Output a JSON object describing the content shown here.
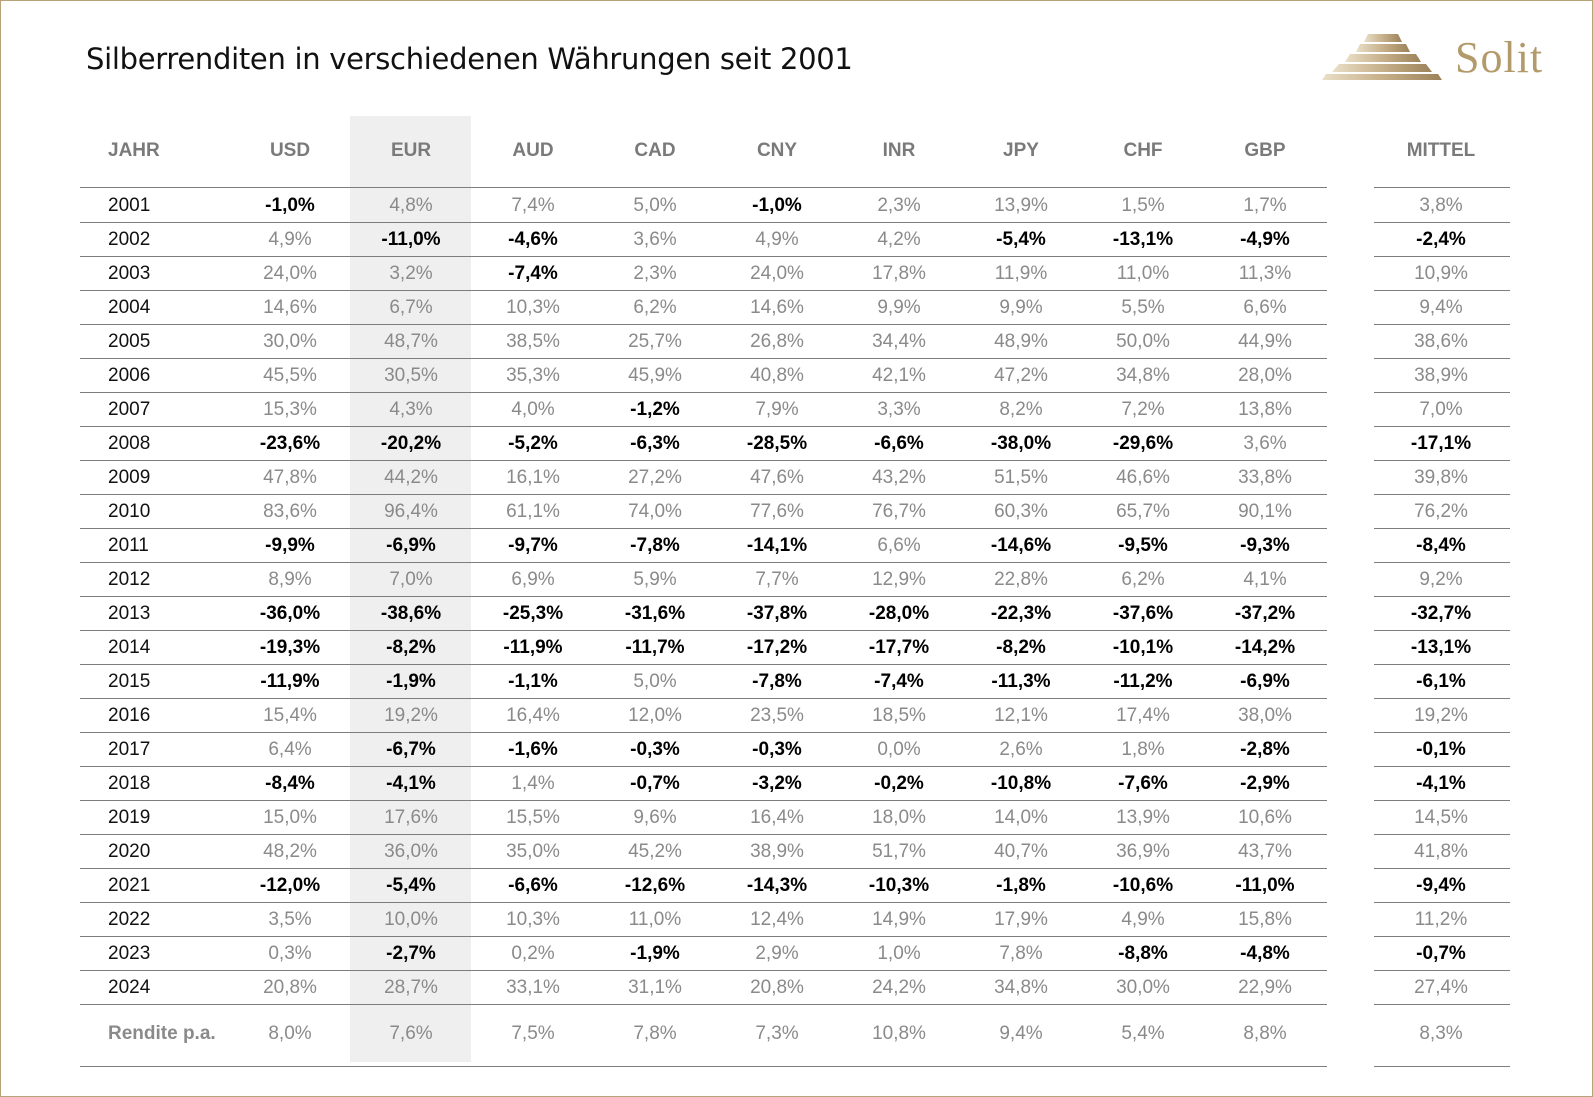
{
  "title": "Silberrenditen in verschiedenen Währungen seit 2001",
  "brand": "Solit",
  "logo_icon": "stepped-pyramid-icon",
  "colors": {
    "accent": "#b39a6b",
    "negative": "#000000",
    "positive": "#8a8a8a",
    "highlight_band": "#efefef"
  },
  "chart_data": {
    "type": "table",
    "title": "Silberrenditen in verschiedenen Währungen seit 2001",
    "columns": [
      "JAHR",
      "USD",
      "EUR",
      "AUD",
      "CAD",
      "CNY",
      "INR",
      "JPY",
      "CHF",
      "GBP",
      "MITTEL"
    ],
    "highlighted_column": "EUR",
    "rows": [
      [
        "2001",
        "-1,0%",
        "4,8%",
        "7,4%",
        "5,0%",
        "-1,0%",
        "2,3%",
        "13,9%",
        "1,5%",
        "1,7%",
        "3,8%"
      ],
      [
        "2002",
        "4,9%",
        "-11,0%",
        "-4,6%",
        "3,6%",
        "4,9%",
        "4,2%",
        "-5,4%",
        "-13,1%",
        "-4,9%",
        "-2,4%"
      ],
      [
        "2003",
        "24,0%",
        "3,2%",
        "-7,4%",
        "2,3%",
        "24,0%",
        "17,8%",
        "11,9%",
        "11,0%",
        "11,3%",
        "10,9%"
      ],
      [
        "2004",
        "14,6%",
        "6,7%",
        "10,3%",
        "6,2%",
        "14,6%",
        "9,9%",
        "9,9%",
        "5,5%",
        "6,6%",
        "9,4%"
      ],
      [
        "2005",
        "30,0%",
        "48,7%",
        "38,5%",
        "25,7%",
        "26,8%",
        "34,4%",
        "48,9%",
        "50,0%",
        "44,9%",
        "38,6%"
      ],
      [
        "2006",
        "45,5%",
        "30,5%",
        "35,3%",
        "45,9%",
        "40,8%",
        "42,1%",
        "47,2%",
        "34,8%",
        "28,0%",
        "38,9%"
      ],
      [
        "2007",
        "15,3%",
        "4,3%",
        "4,0%",
        "-1,2%",
        "7,9%",
        "3,3%",
        "8,2%",
        "7,2%",
        "13,8%",
        "7,0%"
      ],
      [
        "2008",
        "-23,6%",
        "-20,2%",
        "-5,2%",
        "-6,3%",
        "-28,5%",
        "-6,6%",
        "-38,0%",
        "-29,6%",
        "3,6%",
        "-17,1%"
      ],
      [
        "2009",
        "47,8%",
        "44,2%",
        "16,1%",
        "27,2%",
        "47,6%",
        "43,2%",
        "51,5%",
        "46,6%",
        "33,8%",
        "39,8%"
      ],
      [
        "2010",
        "83,6%",
        "96,4%",
        "61,1%",
        "74,0%",
        "77,6%",
        "76,7%",
        "60,3%",
        "65,7%",
        "90,1%",
        "76,2%"
      ],
      [
        "2011",
        "-9,9%",
        "-6,9%",
        "-9,7%",
        "-7,8%",
        "-14,1%",
        "6,6%",
        "-14,6%",
        "-9,5%",
        "-9,3%",
        "-8,4%"
      ],
      [
        "2012",
        "8,9%",
        "7,0%",
        "6,9%",
        "5,9%",
        "7,7%",
        "12,9%",
        "22,8%",
        "6,2%",
        "4,1%",
        "9,2%"
      ],
      [
        "2013",
        "-36,0%",
        "-38,6%",
        "-25,3%",
        "-31,6%",
        "-37,8%",
        "-28,0%",
        "-22,3%",
        "-37,6%",
        "-37,2%",
        "-32,7%"
      ],
      [
        "2014",
        "-19,3%",
        "-8,2%",
        "-11,9%",
        "-11,7%",
        "-17,2%",
        "-17,7%",
        "-8,2%",
        "-10,1%",
        "-14,2%",
        "-13,1%"
      ],
      [
        "2015",
        "-11,9%",
        "-1,9%",
        "-1,1%",
        "5,0%",
        "-7,8%",
        "-7,4%",
        "-11,3%",
        "-11,2%",
        "-6,9%",
        "-6,1%"
      ],
      [
        "2016",
        "15,4%",
        "19,2%",
        "16,4%",
        "12,0%",
        "23,5%",
        "18,5%",
        "12,1%",
        "17,4%",
        "38,0%",
        "19,2%"
      ],
      [
        "2017",
        "6,4%",
        "-6,7%",
        "-1,6%",
        "-0,3%",
        "-0,3%",
        "0,0%",
        "2,6%",
        "1,8%",
        "-2,8%",
        "-0,1%"
      ],
      [
        "2018",
        "-8,4%",
        "-4,1%",
        "1,4%",
        "-0,7%",
        "-3,2%",
        "-0,2%",
        "-10,8%",
        "-7,6%",
        "-2,9%",
        "-4,1%"
      ],
      [
        "2019",
        "15,0%",
        "17,6%",
        "15,5%",
        "9,6%",
        "16,4%",
        "18,0%",
        "14,0%",
        "13,9%",
        "10,6%",
        "14,5%"
      ],
      [
        "2020",
        "48,2%",
        "36,0%",
        "35,0%",
        "45,2%",
        "38,9%",
        "51,7%",
        "40,7%",
        "36,9%",
        "43,7%",
        "41,8%"
      ],
      [
        "2021",
        "-12,0%",
        "-5,4%",
        "-6,6%",
        "-12,6%",
        "-14,3%",
        "-10,3%",
        "-1,8%",
        "-10,6%",
        "-11,0%",
        "-9,4%"
      ],
      [
        "2022",
        "3,5%",
        "10,0%",
        "10,3%",
        "11,0%",
        "12,4%",
        "14,9%",
        "17,9%",
        "4,9%",
        "15,8%",
        "11,2%"
      ],
      [
        "2023",
        "0,3%",
        "-2,7%",
        "0,2%",
        "-1,9%",
        "2,9%",
        "1,0%",
        "7,8%",
        "-8,8%",
        "-4,8%",
        "-0,7%"
      ],
      [
        "2024",
        "20,8%",
        "28,7%",
        "33,1%",
        "31,1%",
        "20,8%",
        "24,2%",
        "34,8%",
        "30,0%",
        "22,9%",
        "27,4%"
      ]
    ],
    "summary_row": [
      "Rendite p.a.",
      "8,0%",
      "7,6%",
      "7,5%",
      "7,8%",
      "7,3%",
      "10,8%",
      "9,4%",
      "5,4%",
      "8,8%",
      "8,3%"
    ]
  }
}
